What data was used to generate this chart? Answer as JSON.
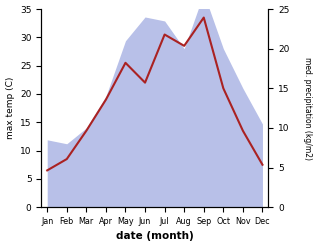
{
  "months": [
    "Jan",
    "Feb",
    "Mar",
    "Apr",
    "May",
    "Jun",
    "Jul",
    "Aug",
    "Sep",
    "Oct",
    "Nov",
    "Dec"
  ],
  "temp": [
    6.5,
    8.5,
    13.5,
    19.0,
    25.5,
    22.0,
    30.5,
    28.5,
    33.5,
    21.0,
    13.5,
    7.5
  ],
  "precip": [
    8.5,
    8.0,
    10.0,
    14.0,
    21.0,
    24.0,
    23.5,
    20.0,
    27.0,
    20.0,
    15.0,
    10.5
  ],
  "temp_color": "#aa2222",
  "precip_fill_color": "#b8c0e8",
  "ylabel_left": "max temp (C)",
  "ylabel_right": "med. precipitation (kg/m2)",
  "xlabel": "date (month)",
  "ylim_left": [
    0,
    35
  ],
  "ylim_right": [
    0,
    25
  ],
  "yticks_left": [
    0,
    5,
    10,
    15,
    20,
    25,
    30,
    35
  ],
  "yticks_right": [
    0,
    5,
    10,
    15,
    20,
    25
  ],
  "background_color": "#ffffff"
}
